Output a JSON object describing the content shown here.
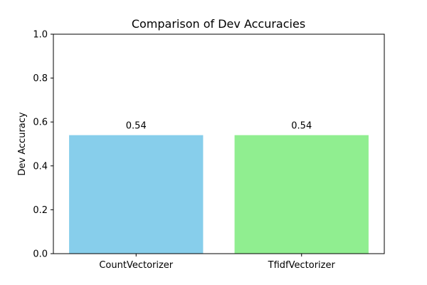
{
  "chart_data": {
    "type": "bar",
    "title": "Comparison of Dev Accuracies",
    "xlabel": "",
    "ylabel": "Dev Accuracy",
    "categories": [
      "CountVectorizer",
      "TfidfVectorizer"
    ],
    "values": [
      0.54,
      0.54
    ],
    "value_labels": [
      "0.54",
      "0.54"
    ],
    "colors": [
      "#87ceeb",
      "#90ee90"
    ],
    "ylim": [
      0,
      1.0
    ],
    "yticks": [
      0.0,
      0.2,
      0.4,
      0.6,
      0.8,
      1.0
    ],
    "ytick_labels": [
      "0.0",
      "0.2",
      "0.4",
      "0.6",
      "0.8",
      "1.0"
    ],
    "grid": false,
    "legend": "none"
  }
}
